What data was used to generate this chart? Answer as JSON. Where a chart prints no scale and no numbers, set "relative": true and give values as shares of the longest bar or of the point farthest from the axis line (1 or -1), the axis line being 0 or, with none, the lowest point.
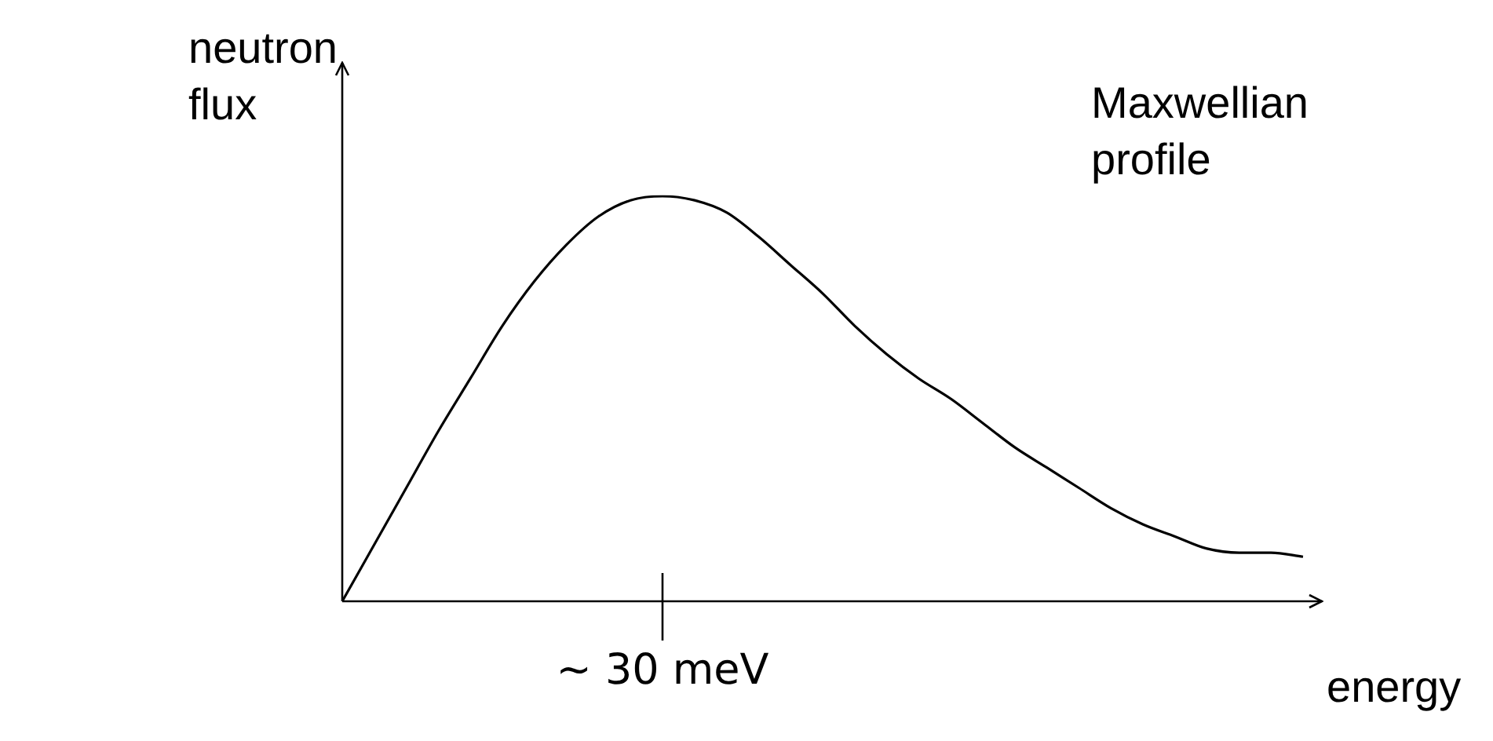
{
  "chart_data": {
    "type": "line",
    "relative": true,
    "ylabel": "neutron flux",
    "xlabel": "energy",
    "annotations": [
      "Maxwellian profile",
      "~ 30 meV"
    ],
    "marker": "none",
    "categories": [
      null,
      null,
      null,
      null,
      null,
      null,
      null,
      null,
      null,
      null,
      null,
      null,
      null,
      null,
      null,
      null,
      null,
      null,
      null,
      null,
      null,
      null,
      null,
      null,
      null,
      null,
      null,
      null,
      null,
      null,
      null
    ],
    "values": [
      0,
      0.14,
      0.28,
      0.42,
      0.55,
      0.68,
      0.79,
      0.88,
      0.95,
      0.99,
      1,
      0.99,
      0.96,
      0.9,
      0.83,
      0.76,
      0.68,
      0.61,
      0.55,
      0.5,
      0.44,
      0.38,
      0.33,
      0.28,
      0.23,
      0.19,
      0.16,
      0.13,
      0.12,
      0.12,
      0.11
    ],
    "color": "#000000"
  }
}
